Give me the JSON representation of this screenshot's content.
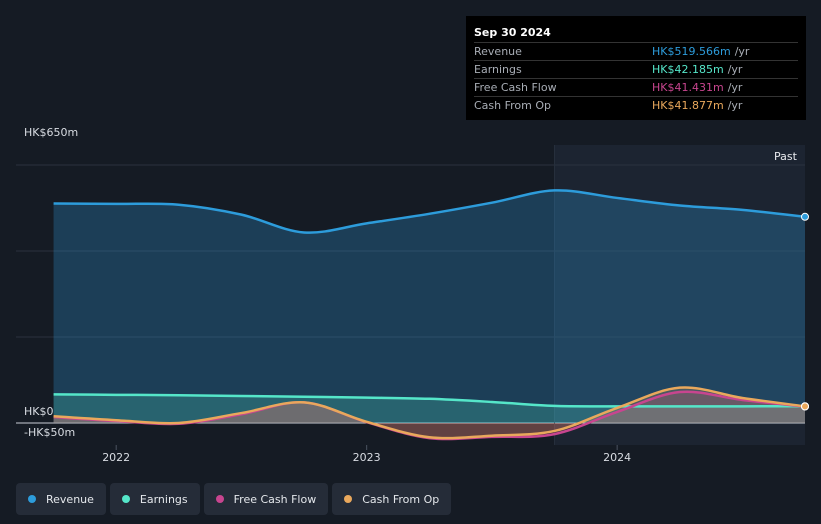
{
  "tooltip": {
    "date": "Sep 30 2024",
    "rows": [
      {
        "name": "Revenue",
        "value": "HK$519.566m",
        "unit": "/yr",
        "color": "#2d9cdb"
      },
      {
        "name": "Earnings",
        "value": "HK$42.185m",
        "unit": "/yr",
        "color": "#55e6c9"
      },
      {
        "name": "Free Cash Flow",
        "value": "HK$41.431m",
        "unit": "/yr",
        "color": "#c8458f"
      },
      {
        "name": "Cash From Op",
        "value": "HK$41.877m",
        "unit": "/yr",
        "color": "#e9a85c"
      }
    ]
  },
  "past_label": "Past",
  "legend": [
    {
      "label": "Revenue",
      "color": "#2d9cdb"
    },
    {
      "label": "Earnings",
      "color": "#55e6c9"
    },
    {
      "label": "Free Cash Flow",
      "color": "#c8458f"
    },
    {
      "label": "Cash From Op",
      "color": "#e9a85c"
    }
  ],
  "chart_data": {
    "type": "area",
    "title": "",
    "xlabel": "",
    "ylabel": "",
    "y_unit": "HK$m",
    "ylim": [
      -50,
      650
    ],
    "y_tick_labels": [
      {
        "value": 650,
        "label": "HK$650m"
      },
      {
        "value": 0,
        "label": "HK$0"
      },
      {
        "value": -50,
        "label": "-HK$50m"
      }
    ],
    "x_tick_labels": [
      {
        "value": 2022,
        "label": "2022"
      },
      {
        "value": 2023,
        "label": "2023"
      },
      {
        "value": 2024,
        "label": "2024"
      }
    ],
    "xlim": [
      2021.6,
      2024.75
    ],
    "past_start": 2023.75,
    "series": [
      {
        "name": "Revenue",
        "color": "#2d9cdb",
        "x": [
          2021.75,
          2022.0,
          2022.25,
          2022.5,
          2022.75,
          2023.0,
          2023.25,
          2023.5,
          2023.75,
          2024.0,
          2024.25,
          2024.5,
          2024.75
        ],
        "values": [
          553,
          552,
          550,
          525,
          480,
          503,
          527,
          555,
          586,
          567,
          548,
          537,
          519.566
        ]
      },
      {
        "name": "Earnings",
        "color": "#55e6c9",
        "x": [
          2021.75,
          2022.0,
          2022.25,
          2022.5,
          2022.75,
          2023.0,
          2023.25,
          2023.5,
          2023.75,
          2024.0,
          2024.25,
          2024.5,
          2024.75
        ],
        "values": [
          72,
          71,
          70,
          68,
          66,
          64,
          61,
          53,
          43,
          42,
          42,
          42,
          42.185
        ]
      },
      {
        "name": "Free Cash Flow",
        "color": "#c8458f",
        "x": [
          2021.75,
          2022.0,
          2022.25,
          2022.5,
          2022.75,
          2023.0,
          2023.25,
          2023.5,
          2023.75,
          2024.0,
          2024.25,
          2024.5,
          2024.75
        ],
        "values": [
          15,
          5,
          -2,
          22,
          52,
          2,
          -38,
          -35,
          -28,
          28,
          78,
          58,
          41.431
        ]
      },
      {
        "name": "Cash From Op",
        "color": "#e9a85c",
        "x": [
          2021.75,
          2022.0,
          2022.25,
          2022.5,
          2022.75,
          2023.0,
          2023.25,
          2023.5,
          2023.75,
          2024.0,
          2024.25,
          2024.5,
          2024.75
        ],
        "values": [
          17,
          7,
          0,
          25,
          52,
          3,
          -36,
          -32,
          -20,
          38,
          89,
          63,
          41.877
        ]
      }
    ]
  }
}
